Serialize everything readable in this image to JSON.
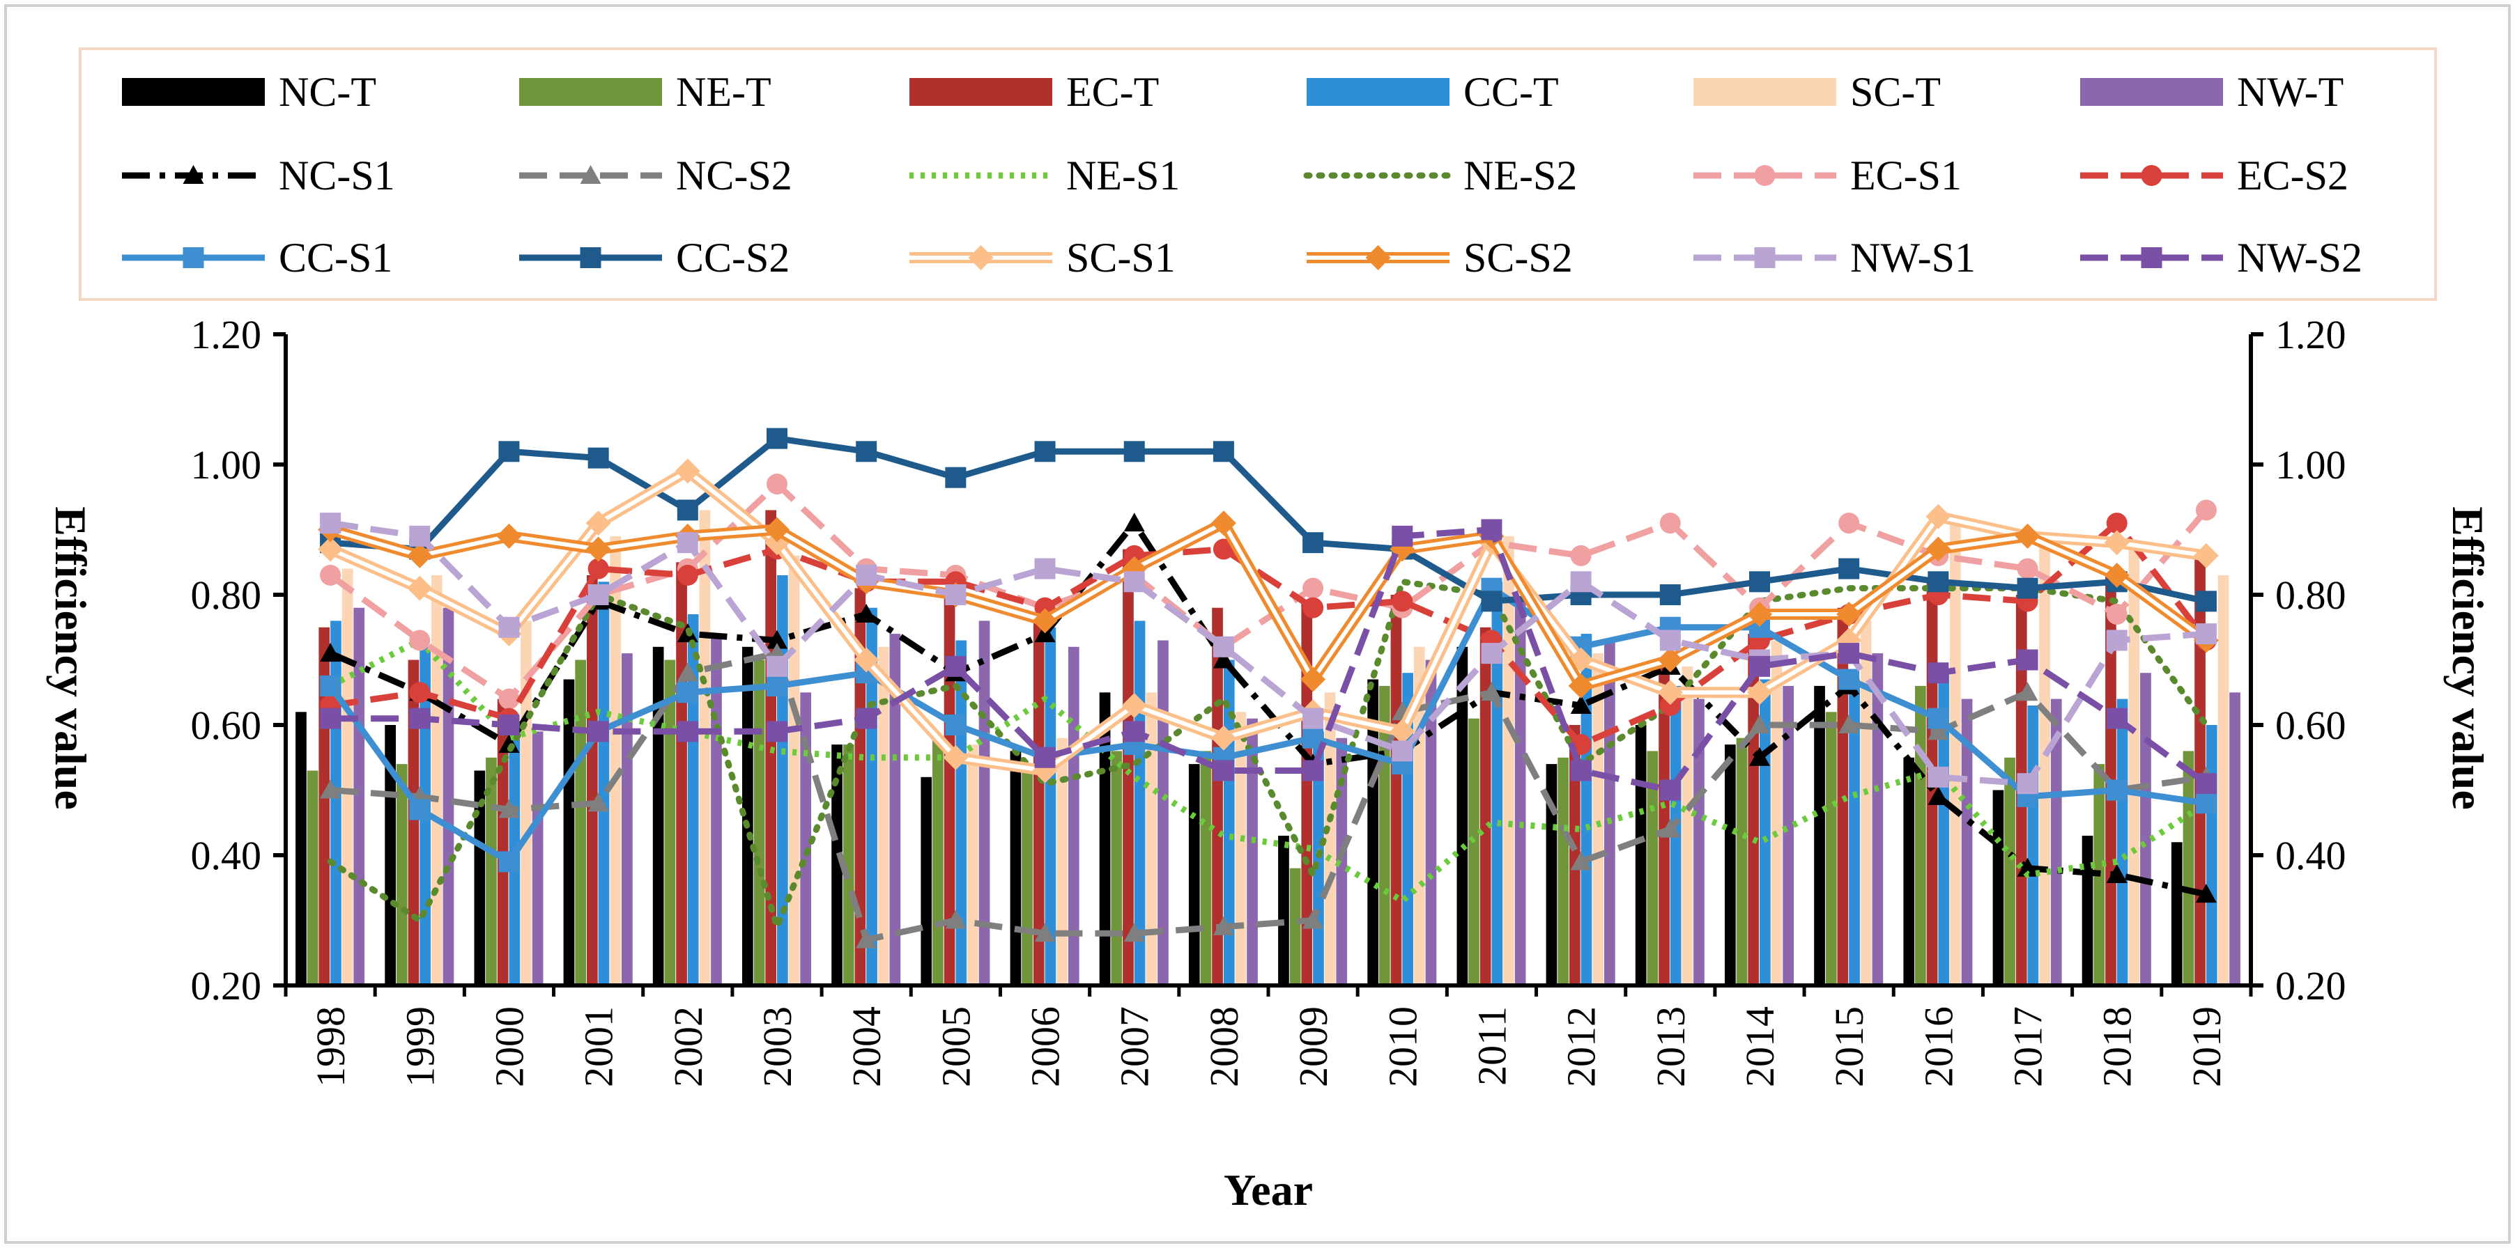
{
  "chart_data": {
    "type": "bar",
    "xlabel": "Year",
    "ylabel": "Efficiency value",
    "ylabel_right": "Efficiency value",
    "ylim": [
      0.2,
      1.2
    ],
    "yticks": [
      "0.20",
      "0.40",
      "0.60",
      "0.80",
      "1.00",
      "1.20"
    ],
    "ytick_values": [
      0.2,
      0.4,
      0.6,
      0.8,
      1.0,
      1.2
    ],
    "categories": [
      "1998",
      "1999",
      "2000",
      "2001",
      "2002",
      "2003",
      "2004",
      "2005",
      "2006",
      "2007",
      "2008",
      "2009",
      "2010",
      "2011",
      "2012",
      "2013",
      "2014",
      "2015",
      "2016",
      "2017",
      "2018",
      "2019"
    ],
    "legend_position": "top",
    "bar_series": [
      {
        "name": "NC-T",
        "color": "#000000",
        "values": [
          0.62,
          0.6,
          0.53,
          0.67,
          0.72,
          0.72,
          0.57,
          0.52,
          0.56,
          0.65,
          0.54,
          0.43,
          0.67,
          0.72,
          0.54,
          0.6,
          0.57,
          0.66,
          0.55,
          0.5,
          0.43,
          0.42
        ]
      },
      {
        "name": "NE-T",
        "color": "#70953A",
        "values": [
          0.53,
          0.54,
          0.55,
          0.7,
          0.7,
          0.7,
          0.57,
          0.58,
          0.54,
          0.56,
          0.56,
          0.38,
          0.66,
          0.61,
          0.55,
          0.56,
          0.58,
          0.62,
          0.66,
          0.55,
          0.54,
          0.56
        ]
      },
      {
        "name": "EC-T",
        "color": "#B0302E",
        "values": [
          0.75,
          0.7,
          0.64,
          0.83,
          0.85,
          0.93,
          0.81,
          0.8,
          0.77,
          0.87,
          0.78,
          0.79,
          0.8,
          0.75,
          0.6,
          0.7,
          0.74,
          0.78,
          0.82,
          0.8,
          0.83,
          0.87
        ]
      },
      {
        "name": "CC-T",
        "color": "#2E8FD8",
        "values": [
          0.76,
          0.72,
          0.58,
          0.82,
          0.77,
          0.83,
          0.78,
          0.73,
          0.75,
          0.76,
          0.7,
          0.59,
          0.68,
          0.82,
          0.74,
          0.66,
          0.67,
          0.67,
          0.68,
          0.63,
          0.64,
          0.6
        ]
      },
      {
        "name": "SC-T",
        "color": "#FCD5B4",
        "values": [
          0.84,
          0.83,
          0.76,
          0.89,
          0.93,
          0.86,
          0.72,
          0.57,
          0.58,
          0.65,
          0.62,
          0.65,
          0.72,
          0.89,
          0.71,
          0.69,
          0.73,
          0.76,
          0.91,
          0.88,
          0.88,
          0.83
        ]
      },
      {
        "name": "NW-T",
        "color": "#8C67AE",
        "values": [
          0.78,
          0.78,
          0.59,
          0.71,
          0.74,
          0.65,
          0.74,
          0.76,
          0.72,
          0.73,
          0.61,
          0.58,
          0.7,
          0.79,
          0.73,
          0.64,
          0.66,
          0.71,
          0.64,
          0.64,
          0.68,
          0.65
        ]
      }
    ],
    "line_series": [
      {
        "name": "NC-S1",
        "color": "#000000",
        "dash": "dash-dot",
        "marker": "triangle",
        "values": [
          0.71,
          0.65,
          0.57,
          0.79,
          0.74,
          0.73,
          0.77,
          0.68,
          0.74,
          0.91,
          0.7,
          0.54,
          0.56,
          0.65,
          0.63,
          0.69,
          0.55,
          0.66,
          0.49,
          0.38,
          0.37,
          0.34
        ]
      },
      {
        "name": "NC-S2",
        "color": "#7F7F7F",
        "dash": "long-dash",
        "marker": "triangle",
        "values": [
          0.5,
          0.49,
          0.47,
          0.48,
          0.68,
          0.71,
          0.27,
          0.3,
          0.28,
          0.28,
          0.29,
          0.3,
          0.62,
          0.65,
          0.39,
          0.44,
          0.6,
          0.6,
          0.59,
          0.65,
          0.5,
          0.52
        ]
      },
      {
        "name": "NE-S1",
        "color": "#6CCB3C",
        "dash": "dot",
        "marker": "none",
        "values": [
          0.66,
          0.73,
          0.58,
          0.62,
          0.59,
          0.56,
          0.55,
          0.55,
          0.64,
          0.52,
          0.43,
          0.41,
          0.33,
          0.45,
          0.44,
          0.48,
          0.42,
          0.49,
          0.53,
          0.37,
          0.39,
          0.48
        ]
      },
      {
        "name": "NE-S2",
        "color": "#5B8A2E",
        "dash": "round-dot",
        "marker": "none",
        "values": [
          0.39,
          0.3,
          0.56,
          0.8,
          0.75,
          0.29,
          0.63,
          0.66,
          0.51,
          0.54,
          0.64,
          0.37,
          0.82,
          0.8,
          0.54,
          0.63,
          0.79,
          0.81,
          0.81,
          0.81,
          0.79,
          0.6
        ]
      },
      {
        "name": "EC-S1",
        "color": "#F0A0A0",
        "dash": "long-dash",
        "marker": "circle",
        "values": [
          0.83,
          0.73,
          0.64,
          0.8,
          0.84,
          0.97,
          0.84,
          0.83,
          0.78,
          0.83,
          0.72,
          0.81,
          0.78,
          0.88,
          0.86,
          0.91,
          0.78,
          0.91,
          0.86,
          0.84,
          0.77,
          0.93
        ]
      },
      {
        "name": "EC-S2",
        "color": "#D9403A",
        "dash": "long-dash",
        "marker": "circle",
        "values": [
          0.63,
          0.65,
          0.61,
          0.84,
          0.83,
          0.87,
          0.82,
          0.82,
          0.78,
          0.86,
          0.87,
          0.78,
          0.79,
          0.73,
          0.57,
          0.63,
          0.73,
          0.77,
          0.8,
          0.79,
          0.91,
          0.73
        ]
      },
      {
        "name": "CC-S1",
        "color": "#3E8FD2",
        "dash": "solid",
        "marker": "square",
        "values": [
          0.66,
          0.47,
          0.39,
          0.59,
          0.65,
          0.66,
          0.68,
          0.6,
          0.55,
          0.57,
          0.55,
          0.58,
          0.54,
          0.81,
          0.72,
          0.75,
          0.75,
          0.67,
          0.61,
          0.49,
          0.5,
          0.48
        ]
      },
      {
        "name": "CC-S2",
        "color": "#1F5A8C",
        "dash": "solid",
        "marker": "square",
        "values": [
          0.88,
          0.87,
          1.02,
          1.01,
          0.93,
          1.04,
          1.02,
          0.98,
          1.02,
          1.02,
          1.02,
          0.88,
          0.87,
          0.79,
          0.8,
          0.8,
          0.82,
          0.84,
          0.82,
          0.81,
          0.82,
          0.79
        ]
      },
      {
        "name": "SC-S1",
        "color": "#FCBF8A",
        "dash": "double",
        "marker": "diamond",
        "values": [
          0.87,
          0.81,
          0.74,
          0.91,
          0.99,
          0.88,
          0.7,
          0.55,
          0.53,
          0.63,
          0.58,
          0.62,
          0.59,
          0.88,
          0.7,
          0.65,
          0.65,
          0.73,
          0.92,
          0.89,
          0.88,
          0.86
        ]
      },
      {
        "name": "SC-S2",
        "color": "#F08A2E",
        "dash": "double",
        "marker": "diamond",
        "values": [
          0.9,
          0.86,
          0.89,
          0.87,
          0.89,
          0.9,
          0.82,
          0.8,
          0.76,
          0.84,
          0.91,
          0.67,
          0.87,
          0.89,
          0.66,
          0.7,
          0.77,
          0.77,
          0.87,
          0.89,
          0.83,
          0.73
        ]
      },
      {
        "name": "NW-S1",
        "color": "#B9A4D3",
        "dash": "long-dash",
        "marker": "square",
        "values": [
          0.91,
          0.89,
          0.75,
          0.8,
          0.88,
          0.69,
          0.83,
          0.8,
          0.84,
          0.82,
          0.72,
          0.61,
          0.56,
          0.71,
          0.82,
          0.73,
          0.7,
          0.71,
          0.52,
          0.51,
          0.73,
          0.74
        ]
      },
      {
        "name": "NW-S2",
        "color": "#7A4FA6",
        "dash": "long-dash",
        "marker": "square",
        "values": [
          0.61,
          0.61,
          0.6,
          0.59,
          0.59,
          0.59,
          0.61,
          0.69,
          0.55,
          0.59,
          0.53,
          0.53,
          0.89,
          0.9,
          0.53,
          0.5,
          0.69,
          0.71,
          0.68,
          0.7,
          0.61,
          0.51
        ]
      }
    ]
  }
}
